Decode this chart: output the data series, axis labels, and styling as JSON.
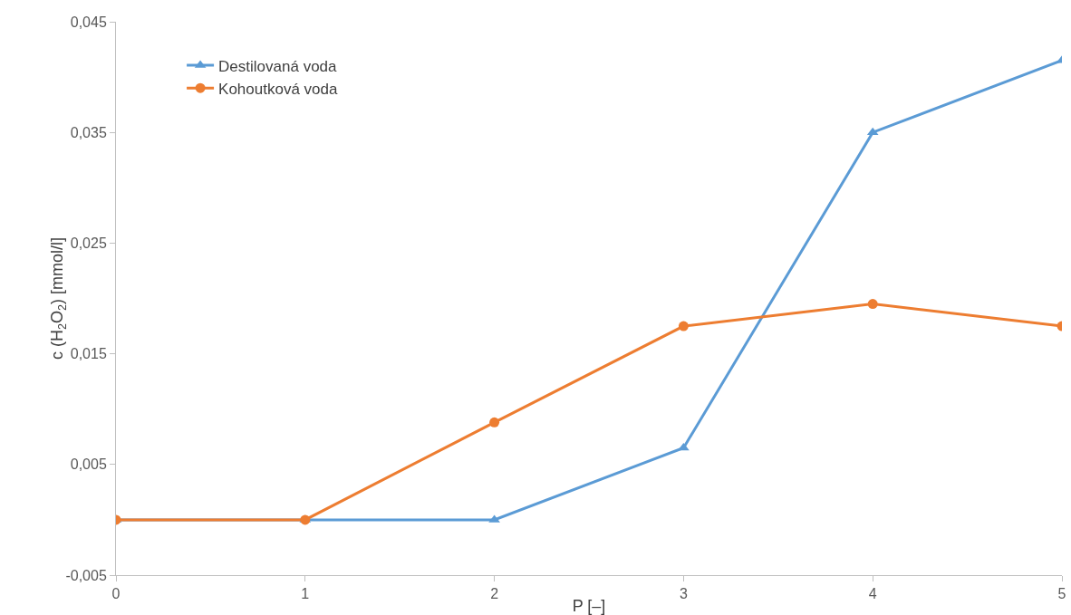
{
  "chart_data": {
    "type": "line",
    "xlabel": "P [–]",
    "ylabel": "c (H$_{2}$O$_{2}$) [mmol/l]",
    "x": [
      0,
      1,
      2,
      3,
      4,
      5
    ],
    "series": [
      {
        "name": "Destilovaná voda",
        "color": "#5b9bd5",
        "marker": "triangle",
        "values": [
          0,
          0,
          0,
          0.0065,
          0.035,
          0.0415
        ]
      },
      {
        "name": "Kohoutková voda",
        "color": "#ed7d31",
        "marker": "circle",
        "values": [
          0,
          0,
          0.0088,
          0.0175,
          0.0195,
          0.0175
        ]
      }
    ],
    "xlim": [
      0,
      5
    ],
    "xticks": [
      0,
      1,
      2,
      3,
      4,
      5
    ],
    "ylim": [
      -0.005,
      0.045
    ],
    "yticks": [
      {
        "value": -0.005,
        "label": "-0,005"
      },
      {
        "value": 0.005,
        "label": "0,005"
      },
      {
        "value": 0.015,
        "label": "0,015"
      },
      {
        "value": 0.025,
        "label": "0,025"
      },
      {
        "value": 0.035,
        "label": "0,035"
      },
      {
        "value": 0.045,
        "label": "0,045"
      }
    ],
    "grid": false,
    "legend": "top left",
    "line_style": "solid"
  }
}
